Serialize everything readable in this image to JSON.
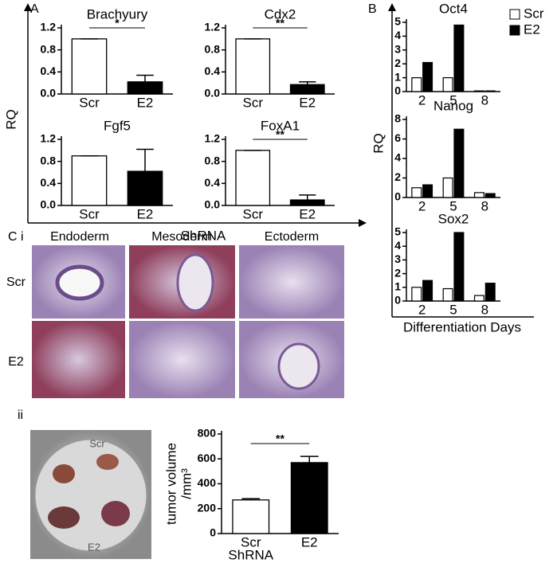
{
  "panel_labels": {
    "a": "A",
    "b": "B",
    "ci": "C i",
    "ii": "ii"
  },
  "panel_a": {
    "y_label": "RQ",
    "x_label": "ShRNA"
  },
  "panel_b": {
    "y_label": "RQ",
    "x_label": "Differentiation Days"
  },
  "panel_c": {
    "columns": [
      "Endoderm",
      "Mesoderm",
      "Ectoderm"
    ],
    "rows": [
      "Scr",
      "E2"
    ],
    "dish_labels": [
      "Scr",
      "E2"
    ]
  },
  "chart_data": [
    {
      "type": "bar",
      "title": "Brachyury",
      "categories": [
        "Scr",
        "E2"
      ],
      "values": [
        1.0,
        0.22
      ],
      "errors": [
        0,
        0.12
      ],
      "colors": [
        "#ffffff",
        "#000000"
      ],
      "annotation": "*",
      "ylim": [
        0,
        1.2
      ],
      "yticks": [
        {
          "value": 0,
          "label": "0.0"
        },
        0.4,
        0.8,
        1.2
      ]
    },
    {
      "type": "bar",
      "title": "Cdx2",
      "categories": [
        "Scr",
        "E2"
      ],
      "values": [
        1.0,
        0.17
      ],
      "errors": [
        0,
        0.05
      ],
      "colors": [
        "#ffffff",
        "#000000"
      ],
      "annotation": "**",
      "ylim": [
        0,
        1.2
      ],
      "yticks": [
        {
          "value": 0,
          "label": "0.0"
        },
        0.4,
        0.8,
        1.2
      ]
    },
    {
      "type": "bar",
      "title": "Fgf5",
      "categories": [
        "Scr",
        "E2"
      ],
      "values": [
        0.9,
        0.62
      ],
      "errors": [
        0,
        0.4
      ],
      "colors": [
        "#ffffff",
        "#000000"
      ],
      "ylim": [
        0,
        1.2
      ],
      "yticks": [
        {
          "value": 0,
          "label": "0.0"
        },
        0.4,
        0.8,
        1.2
      ]
    },
    {
      "type": "bar",
      "title": "FoxA1",
      "categories": [
        "Scr",
        "E2"
      ],
      "values": [
        1.0,
        0.1
      ],
      "errors": [
        0,
        0.09
      ],
      "colors": [
        "#ffffff",
        "#000000"
      ],
      "annotation": "**",
      "ylim": [
        0,
        1.2
      ],
      "yticks": [
        {
          "value": 0,
          "label": "0.0"
        },
        0.4,
        0.8,
        1.2
      ]
    },
    {
      "type": "bar",
      "title": "Oct4",
      "categories": [
        "2",
        "5",
        "8"
      ],
      "legend": "top-right",
      "series": [
        {
          "name": "Scr",
          "color": "#ffffff",
          "values": [
            1.0,
            1.0,
            0.05
          ]
        },
        {
          "name": "E2",
          "color": "#000000",
          "values": [
            2.1,
            4.8,
            0.05
          ]
        }
      ],
      "ylim": [
        0,
        5
      ],
      "yticks": [
        0,
        1,
        2,
        3,
        4,
        5
      ]
    },
    {
      "type": "bar",
      "title": "Nanog",
      "categories": [
        "2",
        "5",
        "8"
      ],
      "series": [
        {
          "name": "Scr",
          "color": "#ffffff",
          "values": [
            1.0,
            2.0,
            0.5
          ]
        },
        {
          "name": "E2",
          "color": "#000000",
          "values": [
            1.3,
            7.0,
            0.4
          ]
        }
      ],
      "ylim": [
        0,
        8
      ],
      "yticks": [
        0,
        2,
        4,
        6,
        8
      ]
    },
    {
      "type": "bar",
      "title": "Sox2",
      "categories": [
        "2",
        "5",
        "8"
      ],
      "series": [
        {
          "name": "Scr",
          "color": "#ffffff",
          "values": [
            1.0,
            0.9,
            0.4
          ]
        },
        {
          "name": "E2",
          "color": "#000000",
          "values": [
            1.5,
            5.0,
            1.3
          ]
        }
      ],
      "ylim": [
        0,
        5
      ],
      "yticks": [
        0,
        1,
        2,
        3,
        4,
        5
      ]
    },
    {
      "type": "bar",
      "categories": [
        "Scr",
        "E2"
      ],
      "values": [
        270,
        570
      ],
      "errors": [
        10,
        50
      ],
      "colors": [
        "#ffffff",
        "#000000"
      ],
      "annotation": "**",
      "y_label": "tumor volume",
      "y_label_unit": "/mm³",
      "x_label": "ShRNA",
      "ylim": [
        0,
        800
      ],
      "yticks": [
        0,
        200,
        400,
        600,
        800
      ]
    }
  ]
}
